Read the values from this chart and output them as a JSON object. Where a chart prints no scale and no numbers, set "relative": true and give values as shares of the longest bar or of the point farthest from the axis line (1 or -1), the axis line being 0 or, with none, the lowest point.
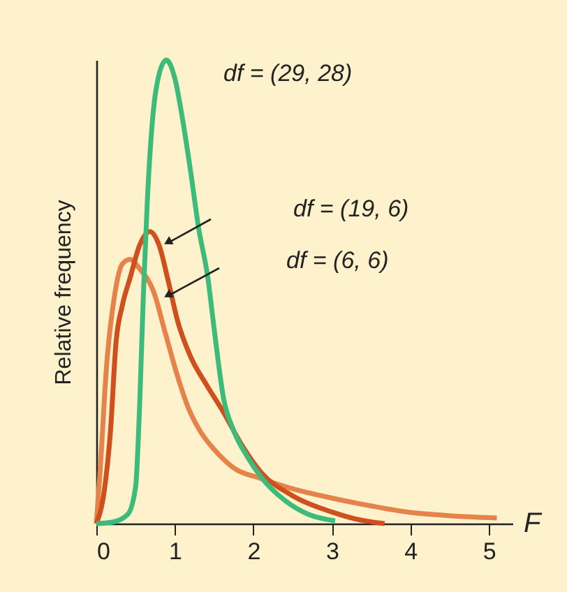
{
  "chart_data": {
    "type": "line",
    "relative": true,
    "ylabel": "Relative frequency",
    "xlabel": "F",
    "xlim": [
      0,
      5.3
    ],
    "xticks": [
      0,
      1,
      2,
      3,
      4,
      5
    ],
    "tick_labels": "x",
    "grid": false,
    "legend": false,
    "marker": "none",
    "line_style": "solid",
    "annotations": [
      "df = (29, 28)",
      "df = (19, 6)",
      "df = (6, 6)"
    ],
    "series": [
      {
        "color": "#e5834a",
        "x": [
          0,
          0.05,
          0.13,
          0.23,
          0.33,
          0.43,
          0.55,
          0.73,
          0.88,
          1.03,
          1.17,
          1.32,
          1.5,
          1.75,
          2.1,
          2.5,
          3.0,
          3.5,
          4.0,
          4.5,
          5.1
        ],
        "values": [
          0,
          0.12,
          0.34,
          0.49,
          0.56,
          0.57,
          0.55,
          0.5,
          0.41,
          0.32,
          0.25,
          0.2,
          0.16,
          0.12,
          0.097,
          0.075,
          0.055,
          0.038,
          0.024,
          0.017,
          0.012
        ]
      },
      {
        "color": "#cf4f1f",
        "x": [
          0,
          0.1,
          0.18,
          0.25,
          0.33,
          0.43,
          0.55,
          0.68,
          0.8,
          0.92,
          1.03,
          1.2,
          1.4,
          1.62,
          1.85,
          2.1,
          2.5,
          3.0,
          3.3,
          3.67
        ],
        "values": [
          0,
          0.07,
          0.2,
          0.39,
          0.47,
          0.53,
          0.6,
          0.63,
          0.6,
          0.52,
          0.44,
          0.36,
          0.3,
          0.24,
          0.17,
          0.11,
          0.06,
          0.025,
          0.01,
          0.0
        ]
      },
      {
        "color": "#3dbb7a",
        "x": [
          0,
          0.2,
          0.4,
          0.5,
          0.55,
          0.6,
          0.65,
          0.72,
          0.8,
          0.89,
          1.0,
          1.1,
          1.2,
          1.3,
          1.42,
          1.5,
          1.62,
          1.75,
          1.92,
          2.1,
          2.4,
          2.7,
          3.04
        ],
        "values": [
          0,
          0.003,
          0.02,
          0.08,
          0.25,
          0.5,
          0.7,
          0.88,
          0.97,
          1.0,
          0.96,
          0.87,
          0.76,
          0.64,
          0.53,
          0.42,
          0.27,
          0.2,
          0.145,
          0.1,
          0.05,
          0.02,
          0.006
        ]
      }
    ]
  }
}
